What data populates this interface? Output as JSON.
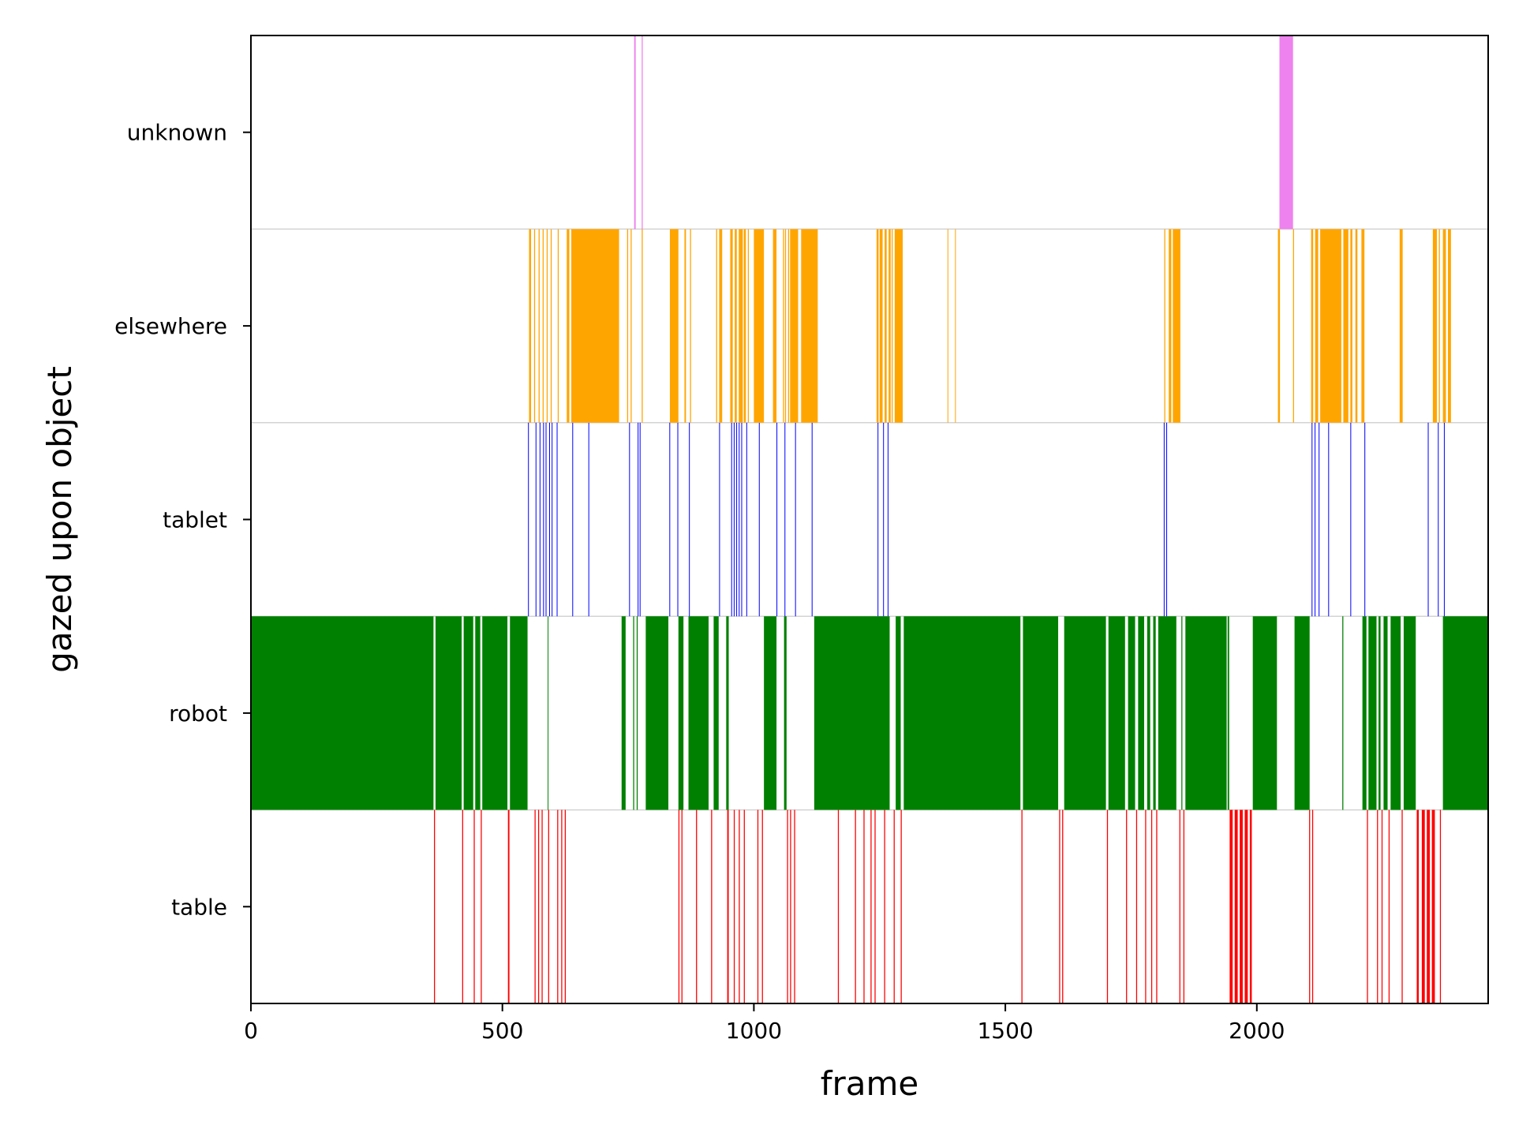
{
  "chart_data": {
    "type": "broken_barh",
    "xlabel": "frame",
    "ylabel": "gazed upon object",
    "xlim": [
      0,
      2460
    ],
    "xticks": [
      0,
      500,
      1000,
      1500,
      2000
    ],
    "grid": false,
    "categories": [
      "table",
      "robot",
      "tablet",
      "elsewhere",
      "unknown"
    ],
    "series": [
      {
        "category": "table",
        "color": "#ff0000",
        "spans": [
          [
            364,
            366
          ],
          [
            420,
            422
          ],
          [
            443,
            445
          ],
          [
            457,
            459
          ],
          [
            511,
            514
          ],
          [
            564,
            566
          ],
          [
            571,
            573
          ],
          [
            578,
            580
          ],
          [
            591,
            593
          ],
          [
            609,
            611
          ],
          [
            617,
            619
          ],
          [
            624,
            626
          ],
          [
            850,
            852
          ],
          [
            856,
            858
          ],
          [
            885,
            887
          ],
          [
            915,
            917
          ],
          [
            947,
            950
          ],
          [
            960,
            962
          ],
          [
            970,
            972
          ],
          [
            980,
            982
          ],
          [
            1007,
            1009
          ],
          [
            1016,
            1018
          ],
          [
            1066,
            1068
          ],
          [
            1072,
            1074
          ],
          [
            1080,
            1082
          ],
          [
            1167,
            1169
          ],
          [
            1201,
            1203
          ],
          [
            1218,
            1220
          ],
          [
            1232,
            1234
          ],
          [
            1240,
            1242
          ],
          [
            1259,
            1261
          ],
          [
            1278,
            1280
          ],
          [
            1292,
            1294
          ],
          [
            1532,
            1534
          ],
          [
            1607,
            1609
          ],
          [
            1613,
            1615
          ],
          [
            1702,
            1704
          ],
          [
            1740,
            1742
          ],
          [
            1760,
            1762
          ],
          [
            1778,
            1780
          ],
          [
            1790,
            1792
          ],
          [
            1800,
            1802
          ],
          [
            1846,
            1848
          ],
          [
            1854,
            1856
          ],
          [
            1946,
            1952
          ],
          [
            1956,
            1962
          ],
          [
            1966,
            1972
          ],
          [
            1976,
            1982
          ],
          [
            1986,
            1990
          ],
          [
            2104,
            2106
          ],
          [
            2110,
            2112
          ],
          [
            2219,
            2221
          ],
          [
            2239,
            2241
          ],
          [
            2248,
            2250
          ],
          [
            2262,
            2264
          ],
          [
            2288,
            2290
          ],
          [
            2318,
            2322
          ],
          [
            2328,
            2334
          ],
          [
            2338,
            2344
          ],
          [
            2348,
            2354
          ],
          [
            2364,
            2366
          ]
        ]
      },
      {
        "category": "robot",
        "color": "#008000",
        "spans": [
          [
            0,
            363
          ],
          [
            367,
            419
          ],
          [
            423,
            442
          ],
          [
            446,
            456
          ],
          [
            460,
            510
          ],
          [
            515,
            550
          ],
          [
            590,
            590.5
          ],
          [
            737,
            745
          ],
          [
            760,
            762
          ],
          [
            767,
            769
          ],
          [
            785,
            830
          ],
          [
            850,
            860
          ],
          [
            870,
            910
          ],
          [
            920,
            930
          ],
          [
            945,
            950
          ],
          [
            1020,
            1045
          ],
          [
            1060,
            1065
          ],
          [
            1120,
            1270
          ],
          [
            1282,
            1292
          ],
          [
            1298,
            1530
          ],
          [
            1535,
            1605
          ],
          [
            1617,
            1700
          ],
          [
            1705,
            1738
          ],
          [
            1744,
            1758
          ],
          [
            1764,
            1776
          ],
          [
            1782,
            1788
          ],
          [
            1794,
            1799
          ],
          [
            1804,
            1840
          ],
          [
            1850,
            1852
          ],
          [
            1858,
            1940
          ],
          [
            1942,
            1945
          ],
          [
            1992,
            2040
          ],
          [
            2075,
            2105
          ],
          [
            2170,
            2172
          ],
          [
            2210,
            2218
          ],
          [
            2222,
            2238
          ],
          [
            2242,
            2246
          ],
          [
            2252,
            2260
          ],
          [
            2266,
            2286
          ],
          [
            2292,
            2316
          ],
          [
            2370,
            2460
          ]
        ]
      },
      {
        "category": "tablet",
        "color": "#0000ff",
        "spans": [
          [
            551,
            552
          ],
          [
            566,
            567
          ],
          [
            574,
            575
          ],
          [
            581,
            582
          ],
          [
            586,
            587
          ],
          [
            593,
            594
          ],
          [
            598,
            599
          ],
          [
            608,
            609
          ],
          [
            639,
            640
          ],
          [
            671,
            672
          ],
          [
            752,
            753
          ],
          [
            769,
            770
          ],
          [
            773,
            774
          ],
          [
            832,
            833
          ],
          [
            848,
            849
          ],
          [
            871,
            872
          ],
          [
            931,
            932
          ],
          [
            955,
            956
          ],
          [
            960,
            961
          ],
          [
            965,
            966
          ],
          [
            970,
            971
          ],
          [
            975,
            976
          ],
          [
            985,
            986
          ],
          [
            1010,
            1011
          ],
          [
            1045,
            1046
          ],
          [
            1061,
            1062
          ],
          [
            1082,
            1083
          ],
          [
            1115,
            1116
          ],
          [
            1246,
            1247
          ],
          [
            1257,
            1258
          ],
          [
            1266,
            1267
          ],
          [
            1815,
            1816
          ],
          [
            1820,
            1821
          ],
          [
            2109,
            2110
          ],
          [
            2115,
            2116
          ],
          [
            2123,
            2124
          ],
          [
            2142,
            2143
          ],
          [
            2186,
            2187
          ],
          [
            2214,
            2215
          ],
          [
            2340,
            2341
          ],
          [
            2360,
            2361
          ],
          [
            2372,
            2373
          ]
        ]
      },
      {
        "category": "elsewhere",
        "color": "#ffa500",
        "spans": [
          [
            553,
            557
          ],
          [
            563,
            565
          ],
          [
            572,
            574
          ],
          [
            580,
            582
          ],
          [
            588,
            590
          ],
          [
            596,
            598
          ],
          [
            610,
            612
          ],
          [
            628,
            633
          ],
          [
            637,
            732
          ],
          [
            748,
            750
          ],
          [
            755,
            757
          ],
          [
            777,
            779
          ],
          [
            833,
            850
          ],
          [
            862,
            865
          ],
          [
            873,
            875
          ],
          [
            925,
            927
          ],
          [
            931,
            937
          ],
          [
            953,
            958
          ],
          [
            962,
            966
          ],
          [
            970,
            978
          ],
          [
            980,
            984
          ],
          [
            988,
            990
          ],
          [
            1000,
            1020
          ],
          [
            1038,
            1045
          ],
          [
            1058,
            1060
          ],
          [
            1062,
            1064
          ],
          [
            1068,
            1070
          ],
          [
            1072,
            1088
          ],
          [
            1094,
            1127
          ],
          [
            1244,
            1248
          ],
          [
            1250,
            1256
          ],
          [
            1260,
            1264
          ],
          [
            1268,
            1272
          ],
          [
            1274,
            1276
          ],
          [
            1280,
            1296
          ],
          [
            1385,
            1386
          ],
          [
            1400,
            1401
          ],
          [
            1816,
            1818
          ],
          [
            1825,
            1830
          ],
          [
            1833,
            1848
          ],
          [
            2042,
            2046
          ],
          [
            2072,
            2074
          ],
          [
            2108,
            2112
          ],
          [
            2116,
            2122
          ],
          [
            2126,
            2168
          ],
          [
            2172,
            2182
          ],
          [
            2186,
            2190
          ],
          [
            2196,
            2200
          ],
          [
            2208,
            2214
          ],
          [
            2284,
            2290
          ],
          [
            2350,
            2358
          ],
          [
            2362,
            2364
          ],
          [
            2370,
            2376
          ],
          [
            2380,
            2386
          ]
        ]
      },
      {
        "category": "unknown",
        "color": "#ee82ee",
        "spans": [
          [
            762,
            765
          ],
          [
            777,
            779
          ],
          [
            2045,
            2072
          ]
        ]
      }
    ]
  }
}
